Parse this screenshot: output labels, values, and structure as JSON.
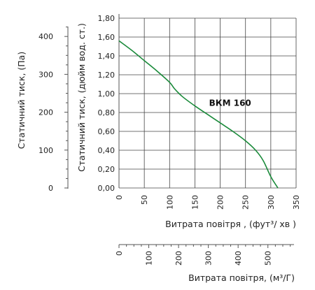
{
  "chart_data": {
    "type": "line",
    "x_axis": {
      "label": "Витрата повітря , (фут³/  хв )",
      "ticks": [
        0,
        50,
        100,
        150,
        200,
        250,
        300,
        350
      ],
      "range": [
        0,
        350
      ]
    },
    "x_axis_secondary": {
      "label": "Витрата повітря, (м³/Г)",
      "ticks": [
        0,
        100,
        200,
        300,
        400,
        500
      ],
      "range": [
        0,
        594.65
      ]
    },
    "y_axis": {
      "label": "Статичний тиск, (дюйм вод. ст.)",
      "ticks": [
        "0,00",
        "0,20",
        "0,40",
        "0,60",
        "0,80",
        "1,00",
        "1,20",
        "1,40",
        "1,60",
        "1,80"
      ],
      "range": [
        0,
        1.8
      ]
    },
    "y_axis_secondary": {
      "label": "Статичний тиск, (Па)",
      "ticks": [
        0,
        100,
        200,
        300,
        400
      ],
      "range": [
        0,
        448.3
      ]
    },
    "grid": true,
    "series": [
      {
        "name": "ВКМ 160",
        "color": "#1a8a3a",
        "x": [
          0,
          25,
          50,
          75,
          100,
          110,
          125,
          150,
          175,
          200,
          225,
          250,
          270,
          285,
          300,
          314
        ],
        "y": [
          1.56,
          1.46,
          1.35,
          1.24,
          1.12,
          1.05,
          0.97,
          0.87,
          0.78,
          0.69,
          0.6,
          0.5,
          0.4,
          0.29,
          0.12,
          0.0
        ]
      }
    ]
  }
}
